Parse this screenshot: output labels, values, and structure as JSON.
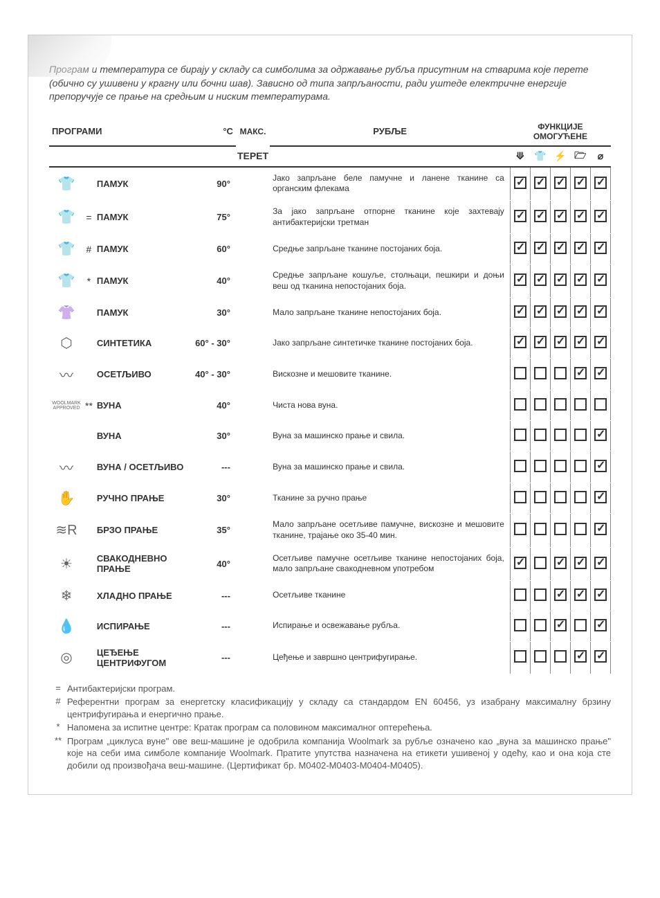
{
  "intro": "Програм и температура се бирају у складу са симболима за одржавање рубља присутним на стварима које перете (обично су ушивени у крагну или бочни шав). Зависно од типа запрљаности, ради уштеде електричне енергије препоручује се прање на средњим и ниским температурама.",
  "headers": {
    "programs": "ПРОГРАМИ",
    "temp": "°C",
    "max": "МАКС.",
    "load": "ТЕРЕТ",
    "laundry": "РУБЉЕ",
    "functions": "ФУНКЦИЈЕ ОМОГУЋЕНЕ"
  },
  "fn_icons": [
    "⟱",
    "👕",
    "⚡",
    "🗁",
    "⌀"
  ],
  "rows": [
    {
      "icon": "👕",
      "mark": "",
      "name": "ПАМУК",
      "temp": "90°",
      "desc": "Јако запрљане беле памучне и ланене тканине са органским флекама",
      "fn": [
        1,
        1,
        1,
        1,
        1
      ]
    },
    {
      "icon": "👕",
      "mark": "=",
      "name": "ПАМУК",
      "temp": "75°",
      "desc": "За јако запрљане отпорне тканине које захтевају антибактеријски третман",
      "fn": [
        1,
        1,
        1,
        1,
        1
      ]
    },
    {
      "icon": "👕",
      "mark": "#",
      "name": "ПАМУК",
      "temp": "60°",
      "desc": "Средње запрљане тканине постојаних боја.",
      "fn": [
        1,
        1,
        1,
        1,
        1
      ]
    },
    {
      "icon": "👕",
      "mark": "*",
      "name": "ПАМУК",
      "temp": "40°",
      "desc": "Средње запрљане кошуље, столњаци, пешкири и доњи веш од тканина непостојаних боја.",
      "fn": [
        1,
        1,
        1,
        1,
        1
      ]
    },
    {
      "icon": "👚",
      "mark": "",
      "name": "ПАМУК",
      "temp": "30°",
      "desc": "Мало запрљане тканине непостојаних боја.",
      "fn": [
        1,
        1,
        1,
        1,
        1
      ]
    },
    {
      "icon": "⬡",
      "mark": "",
      "name": "СИНТЕТИКА",
      "temp": "60° - 30°",
      "desc": "Јако запрљане синтетичке тканине постојаних боја.",
      "fn": [
        1,
        1,
        1,
        1,
        1
      ]
    },
    {
      "icon": "〰",
      "mark": "",
      "name": "ОСЕТЉИВО",
      "temp": "40° - 30°",
      "desc": "Вискозне и мешовите тканине.",
      "fn": [
        0,
        0,
        0,
        1,
        1
      ]
    },
    {
      "icon": "◉",
      "mark": "**",
      "name": "ВУНА",
      "temp": "40°",
      "desc": "Чиста нова вуна.",
      "fn": [
        0,
        0,
        0,
        0,
        0
      ],
      "woolmark": true
    },
    {
      "icon": "",
      "mark": "",
      "name": "ВУНА",
      "temp": "30°",
      "desc": "Вуна за машинско прање и свила.",
      "fn": [
        0,
        0,
        0,
        0,
        1
      ]
    },
    {
      "icon": "〰",
      "mark": "",
      "name": "ВУНА / ОСЕТЉИВО",
      "temp": "---",
      "desc": "Вуна за машинско прање и свила.",
      "fn": [
        0,
        0,
        0,
        0,
        1
      ]
    },
    {
      "icon": "✋",
      "mark": "",
      "name": "РУЧНО ПРАЊЕ",
      "temp": "30°",
      "desc": "Тканине за ручно прање",
      "fn": [
        0,
        0,
        0,
        0,
        1
      ]
    },
    {
      "icon": "≋R",
      "mark": "",
      "name": "БРЗО ПРАЊЕ",
      "temp": "35°",
      "desc": "Мало запрљане осетљиве памучне, вискозне и мешовите тканине, трајање око 35-40 мин.",
      "fn": [
        0,
        0,
        0,
        0,
        1
      ]
    },
    {
      "icon": "☀",
      "mark": "",
      "name": "СВАКОДНЕВНО ПРАЊЕ",
      "temp": "40°",
      "desc": "Осетљиве памучне осетљиве тканине непостојаних боја, мало запрљане свакодневном употребом",
      "fn": [
        1,
        0,
        1,
        1,
        1
      ]
    },
    {
      "icon": "❄",
      "mark": "",
      "name": "ХЛАДНО ПРАЊЕ",
      "temp": "---",
      "desc": "Осетљиве тканине",
      "fn": [
        0,
        0,
        1,
        1,
        1
      ]
    },
    {
      "icon": "💧",
      "mark": "",
      "name": "ИСПИРАЊЕ",
      "temp": "---",
      "desc": "Испирање и освежавање рубља.",
      "fn": [
        0,
        0,
        1,
        0,
        1
      ]
    },
    {
      "icon": "◎",
      "mark": "",
      "name": "ЦЕЂЕЊЕ ЦЕНТРИФУГОМ",
      "temp": "---",
      "desc": "Цеђење и завршно центрифугирање.",
      "fn": [
        0,
        0,
        0,
        1,
        1
      ]
    }
  ],
  "footnotes": [
    {
      "sym": "=",
      "txt": "Антибактеријски програм."
    },
    {
      "sym": "#",
      "txt": "Референтни програм за енергетску класификацију у складу са стандардом EN 60456, уз изабрану максималну брзину центрифугирања и енергично прање."
    },
    {
      "sym": "*",
      "txt": "Напомена за испитне центре: Кратак програм са половином максималног оптерећења."
    },
    {
      "sym": "**",
      "txt": "Програм „циклуса вуне\" ове веш-машине је одобрила компанија Woolmark за рубље означено као „вуна за машинско прање\" које на себи има симболе компаније Woolmark. Пратите упутства назначена на етикети ушивеној у одећу, као и она која сте добили од произвођача веш-машине. (Цертификат бр. M0402-M0403-M0404-M0405)."
    }
  ],
  "woolmark_label": "WOOLMARK APPROVED"
}
